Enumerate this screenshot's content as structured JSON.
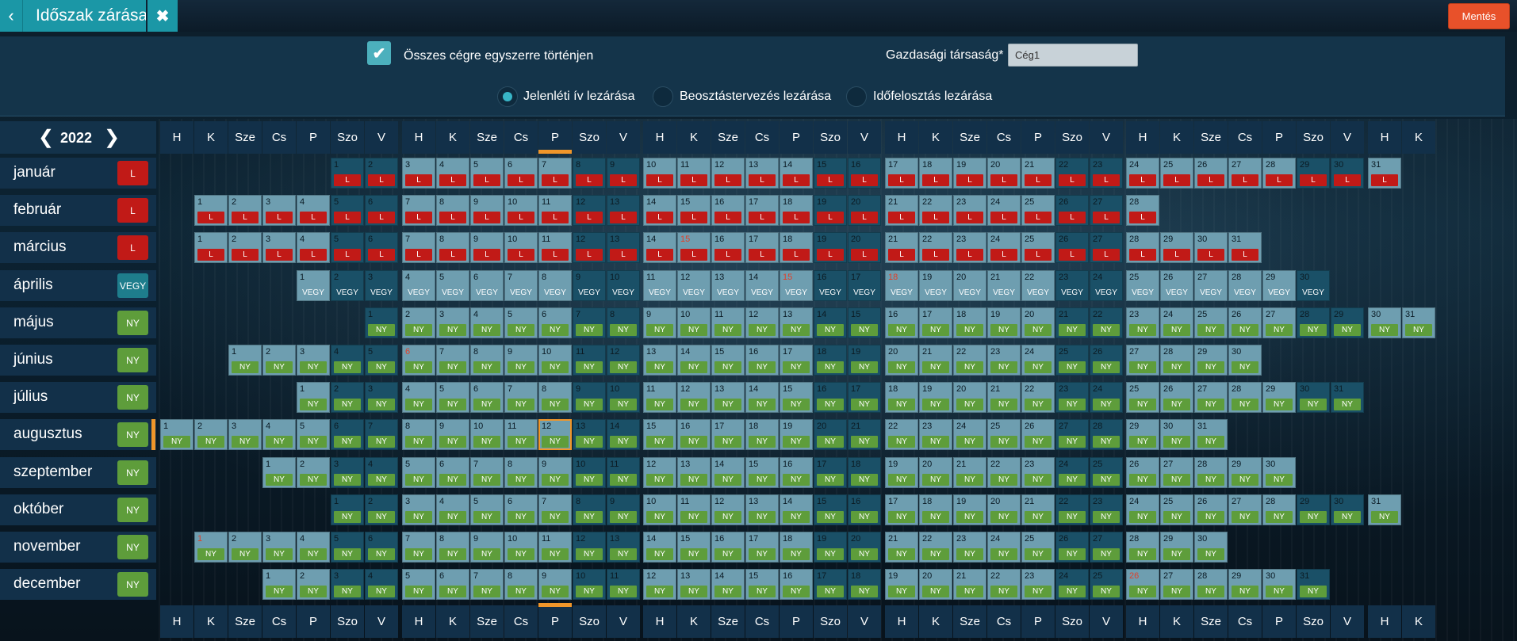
{
  "header": {
    "title": "Időszak zárása",
    "save_label": "Mentés",
    "back_icon": "chevron-left-icon",
    "close_icon": "close-icon"
  },
  "options": {
    "all_companies_label": "Összes cégre egyszerre történjen",
    "all_companies_checked": true,
    "company_label": "Gazdasági társaság*",
    "company_value": "Cég1",
    "radios": [
      {
        "label": "Jelenléti ív lezárása",
        "selected": true
      },
      {
        "label": "Beosztástervezés lezárása",
        "selected": false
      },
      {
        "label": "Időfelosztás lezárása",
        "selected": false
      }
    ]
  },
  "year": "2022",
  "weekdays": [
    "H",
    "K",
    "Sze",
    "Cs",
    "P",
    "Szo",
    "V",
    "H",
    "K",
    "Sze",
    "Cs",
    "P",
    "Szo",
    "V",
    "H",
    "K",
    "Sze",
    "Cs",
    "P",
    "Szo",
    "V",
    "H",
    "K",
    "Sze",
    "Cs",
    "P",
    "Szo",
    "V",
    "H",
    "K",
    "Sze",
    "Cs",
    "P",
    "Szo",
    "V",
    "H",
    "K"
  ],
  "months": [
    {
      "name": "január",
      "status": "L",
      "days": 31,
      "offset": 5,
      "holidays": [
        1
      ]
    },
    {
      "name": "február",
      "status": "L",
      "days": 28,
      "offset": 1,
      "holidays": []
    },
    {
      "name": "március",
      "status": "L",
      "days": 31,
      "offset": 1,
      "holidays": [
        15
      ]
    },
    {
      "name": "április",
      "status": "VEGY",
      "days": 30,
      "offset": 4,
      "holidays": [
        15,
        17,
        18
      ]
    },
    {
      "name": "május",
      "status": "NY",
      "days": 31,
      "offset": 6,
      "holidays": [
        1
      ]
    },
    {
      "name": "június",
      "status": "NY",
      "days": 30,
      "offset": 2,
      "holidays": [
        5,
        6
      ]
    },
    {
      "name": "július",
      "status": "NY",
      "days": 31,
      "offset": 4,
      "holidays": []
    },
    {
      "name": "augusztus",
      "status": "NY",
      "days": 31,
      "offset": 0,
      "holidays": [
        20
      ],
      "current": true,
      "current_day": 12
    },
    {
      "name": "szeptember",
      "status": "NY",
      "days": 30,
      "offset": 3,
      "holidays": []
    },
    {
      "name": "október",
      "status": "NY",
      "days": 31,
      "offset": 5,
      "holidays": [
        23
      ]
    },
    {
      "name": "november",
      "status": "NY",
      "days": 30,
      "offset": 1,
      "holidays": [
        1
      ]
    },
    {
      "name": "december",
      "status": "NY",
      "days": 31,
      "offset": 3,
      "holidays": [
        25,
        26
      ]
    }
  ],
  "colors": {
    "L": "#c11a17",
    "VEGY": "#1e7d8c",
    "NY": "#5e9d3b",
    "accent": "#1b97a6",
    "save": "#e8512a",
    "marker": "#f0962a"
  }
}
